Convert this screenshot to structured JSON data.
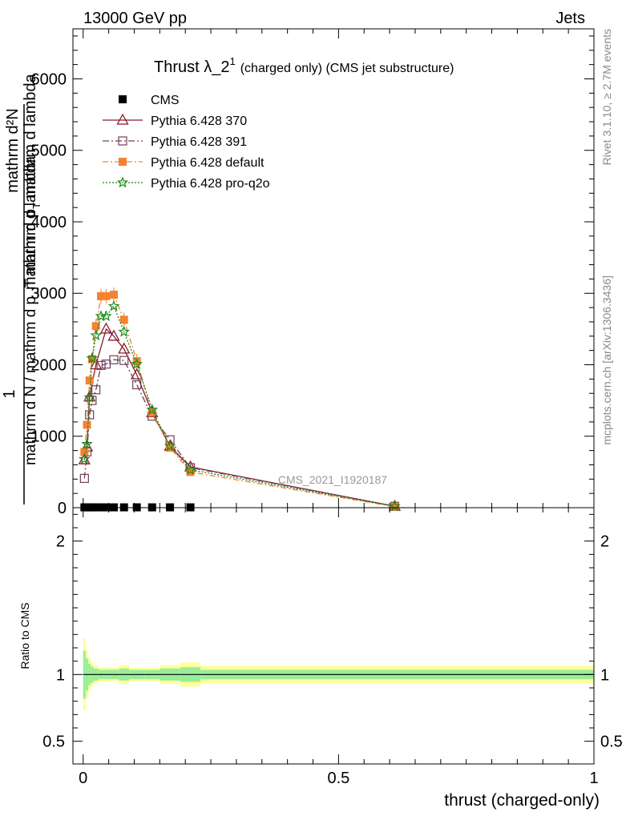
{
  "header": {
    "energy_label": "13000 GeV pp",
    "process_label": "Jets",
    "rivet_label": "Rivet 3.1.10, ≥ 2.7M events",
    "source_label": "mcplots.cern.ch [arXiv:1306.3436]",
    "analysis_label": "CMS_2021_I1920187"
  },
  "chart_data": [
    {
      "type": "line",
      "title_main": "Thrust λ_2",
      "title_sup": "1",
      "title_rest": "(charged only) (CMS jet substructure)",
      "ylabel_numerator": "1",
      "ylabel_denominator": "mathrm d N / mathrm d p_T mathrm d lambda",
      "ylabel_upper": "mathrm d²N",
      "ylabel_lower": "mathrm d p",
      "ylabel_sub": "T",
      "ylabel_lower_rest": "mathrm d lambda",
      "xlim": [
        -0.02,
        1.0
      ],
      "ylim": [
        0,
        6700
      ],
      "yticks": [
        0,
        1000,
        2000,
        3000,
        4000,
        5000,
        6000
      ],
      "ytick_labels": [
        "0",
        "1000",
        "2000",
        "3000",
        "4000",
        "5000",
        "6000"
      ],
      "grid": false,
      "legend_position": "top-left",
      "series": [
        {
          "name": "CMS",
          "color": "#000000",
          "marker": "filled-square",
          "x": [
            0.0025,
            0.0075,
            0.0125,
            0.0175,
            0.025,
            0.035,
            0.045,
            0.06,
            0.08,
            0.105,
            0.135,
            0.17,
            0.21
          ],
          "y": [
            5,
            5,
            5,
            5,
            5,
            5,
            5,
            5,
            5,
            5,
            5,
            5,
            5
          ]
        },
        {
          "name": "Pythia 6.428 370",
          "color": "#8b1a2b",
          "marker": "open-triangle",
          "x": [
            0.0025,
            0.0075,
            0.0125,
            0.025,
            0.045,
            0.06,
            0.08,
            0.105,
            0.135,
            0.17,
            0.21,
            0.61
          ],
          "y": [
            670,
            850,
            1550,
            2000,
            2500,
            2400,
            2220,
            1860,
            1330,
            860,
            570,
            20
          ]
        },
        {
          "name": "Pythia 6.428 391",
          "color": "#70405a",
          "marker": "open-square",
          "x": [
            0.0025,
            0.0075,
            0.0125,
            0.0175,
            0.025,
            0.035,
            0.045,
            0.06,
            0.08,
            0.105,
            0.135,
            0.17,
            0.21,
            0.61
          ],
          "y": [
            410,
            780,
            1300,
            1500,
            1650,
            1990,
            2010,
            2070,
            2060,
            1720,
            1280,
            950,
            560,
            20
          ]
        },
        {
          "name": "Pythia 6.428 default",
          "color": "#f58231",
          "marker": "filled-square",
          "x": [
            0.0025,
            0.0075,
            0.0125,
            0.0175,
            0.025,
            0.035,
            0.045,
            0.06,
            0.08,
            0.105,
            0.135,
            0.17,
            0.21,
            0.61
          ],
          "y": [
            780,
            1160,
            1780,
            2080,
            2540,
            2960,
            2960,
            2980,
            2630,
            2050,
            1330,
            840,
            500,
            15
          ]
        },
        {
          "name": "Pythia 6.428 pro-q2o",
          "color": "#1a8a1a",
          "marker": "star",
          "x": [
            0.0025,
            0.0075,
            0.0125,
            0.0175,
            0.025,
            0.035,
            0.045,
            0.06,
            0.08,
            0.105,
            0.135,
            0.17,
            0.21,
            0.61
          ],
          "y": [
            680,
            890,
            1540,
            2090,
            2410,
            2680,
            2680,
            2820,
            2460,
            2010,
            1370,
            860,
            530,
            18
          ]
        }
      ]
    },
    {
      "type": "area",
      "ylabel": "Ratio to CMS",
      "xlabel": "thrust (charged-only)",
      "xlim": [
        -0.02,
        1.0
      ],
      "ylim": [
        0.33,
        2.25
      ],
      "yticks": [
        0.5,
        1,
        2
      ],
      "ytick_labels": [
        "0.5",
        "1",
        "2"
      ],
      "xticks": [
        0,
        0.5,
        1
      ],
      "xtick_labels": [
        "0",
        "0.5",
        "1"
      ],
      "reference": 1.0,
      "bands": {
        "edges": [
          0,
          0.005,
          0.01,
          0.015,
          0.02,
          0.03,
          0.04,
          0.05,
          0.07,
          0.09,
          0.12,
          0.15,
          0.19,
          0.23,
          1.0
        ],
        "yellow_half_width": [
          0.27,
          0.18,
          0.12,
          0.09,
          0.07,
          0.05,
          0.055,
          0.05,
          0.07,
          0.05,
          0.05,
          0.07,
          0.09,
          0.065
        ],
        "green_half_width": [
          0.18,
          0.12,
          0.08,
          0.06,
          0.045,
          0.035,
          0.035,
          0.035,
          0.045,
          0.035,
          0.035,
          0.045,
          0.055,
          0.035
        ],
        "yellow_color": "#ffff99",
        "green_color": "#99ee99"
      }
    }
  ]
}
